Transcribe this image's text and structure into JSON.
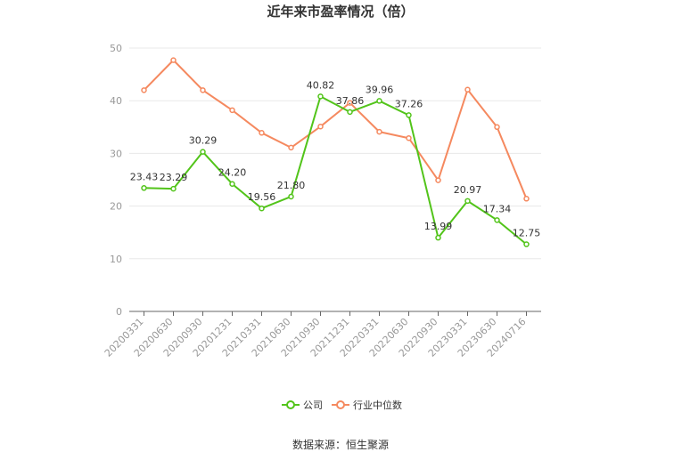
{
  "chart_data": {
    "type": "line",
    "title": "近年来市盈率情况（倍）",
    "xlabel": "",
    "ylabel": "",
    "ylim": [
      0,
      50
    ],
    "yticks": [
      0,
      10,
      20,
      30,
      40,
      50
    ],
    "grid": true,
    "legend_position": "bottom",
    "categories": [
      "20200331",
      "20200630",
      "20200930",
      "20201231",
      "20210331",
      "20210630",
      "20210930",
      "20211231",
      "20220331",
      "20220630",
      "20220930",
      "20230331",
      "20230630",
      "20240716"
    ],
    "series": [
      {
        "name": "公司",
        "color": "#52c41a",
        "values": [
          23.43,
          23.29,
          30.29,
          24.2,
          19.56,
          21.8,
          40.82,
          37.86,
          39.96,
          37.26,
          13.99,
          20.97,
          17.34,
          12.75
        ],
        "labels": [
          "23.43",
          "23.29",
          "30.29",
          "24.20",
          "19.56",
          "21.80",
          "40.82",
          "37.86",
          "39.96",
          "37.26",
          "13.99",
          "20.97",
          "17.34",
          "12.75"
        ]
      },
      {
        "name": "行业中位数",
        "color": "#f5895f",
        "values": [
          42.0,
          47.7,
          42.0,
          38.2,
          33.9,
          31.1,
          35.1,
          39.6,
          34.1,
          32.9,
          24.9,
          42.1,
          35.0,
          21.4
        ]
      }
    ]
  },
  "source_text": "数据来源：恒生聚源"
}
